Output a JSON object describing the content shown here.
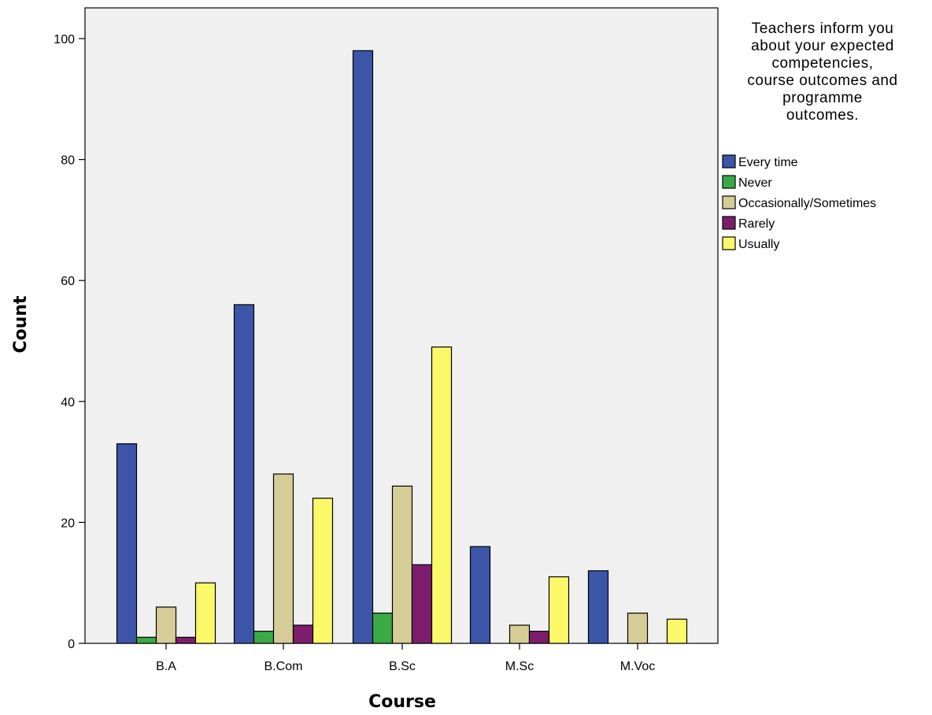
{
  "chart_data": {
    "type": "bar",
    "title": "",
    "xlabel": "Course",
    "ylabel": "Count",
    "categories": [
      "B.A",
      "B.Com",
      "B.Sc",
      "M.Sc",
      "M.Voc"
    ],
    "ylim": [
      0,
      105
    ],
    "yticks": [
      "0",
      "20",
      "40",
      "60",
      "80",
      "100"
    ],
    "grid": false,
    "legend_position": "right",
    "legend_title_lines": [
      "Teachers inform you",
      "about your expected",
      "competencies,",
      "course outcomes and",
      "programme",
      "outcomes."
    ],
    "series": [
      {
        "name": "Every time",
        "color": "#3d55a8",
        "values": [
          33,
          56,
          98,
          16,
          12
        ]
      },
      {
        "name": "Never",
        "color": "#3aaa46",
        "values": [
          1,
          2,
          5,
          0,
          0
        ]
      },
      {
        "name": "Occasionally/Sometimes",
        "color": "#d6cc98",
        "values": [
          6,
          28,
          26,
          3,
          5
        ]
      },
      {
        "name": "Rarely",
        "color": "#7d1d6d",
        "values": [
          1,
          3,
          13,
          2,
          0
        ]
      },
      {
        "name": "Usually",
        "color": "#fbf96a",
        "values": [
          10,
          24,
          49,
          11,
          4
        ]
      }
    ],
    "plot_background": "#f0f0f0"
  }
}
